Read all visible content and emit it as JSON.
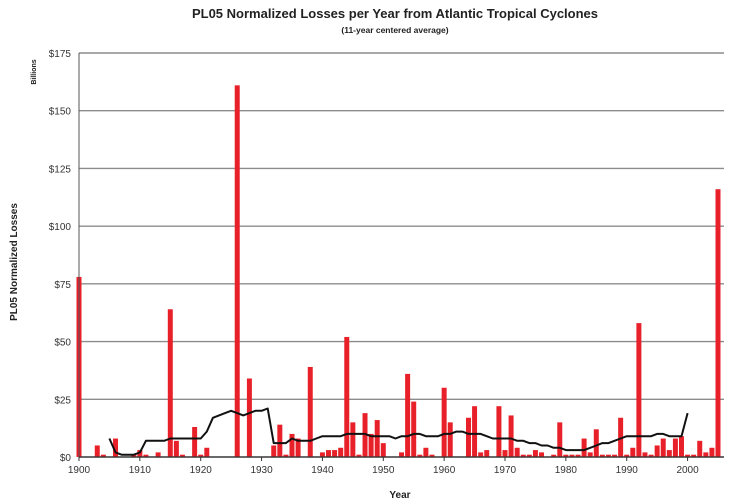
{
  "chart_data": {
    "type": "bar",
    "title": "PL05 Normalized Losses per Year from Atlantic Tropical Cyclones",
    "subtitle": "(11-year centered average)",
    "xlabel": "Year",
    "ylabel": "PL05 Normalized Losses",
    "y_unit_label": "Billions",
    "xlim": [
      1900,
      2005
    ],
    "ylim": [
      0,
      175
    ],
    "x_ticks": [
      "1900",
      "1910",
      "1920",
      "1930",
      "1940",
      "1950",
      "1960",
      "1970",
      "1980",
      "1990",
      "2000"
    ],
    "y_ticks": [
      "$0",
      "$25",
      "$50",
      "$75",
      "$100",
      "$125",
      "$150",
      "$175"
    ],
    "grid": true,
    "bar_color": "#e8202a",
    "line_color": "#111111",
    "series": [
      {
        "type": "bar",
        "x": [
          1900,
          1901,
          1902,
          1903,
          1904,
          1905,
          1906,
          1907,
          1908,
          1909,
          1910,
          1911,
          1912,
          1913,
          1914,
          1915,
          1916,
          1917,
          1918,
          1919,
          1920,
          1921,
          1922,
          1923,
          1924,
          1925,
          1926,
          1927,
          1928,
          1929,
          1930,
          1931,
          1932,
          1933,
          1934,
          1935,
          1936,
          1937,
          1938,
          1939,
          1940,
          1941,
          1942,
          1943,
          1944,
          1945,
          1946,
          1947,
          1948,
          1949,
          1950,
          1951,
          1952,
          1953,
          1954,
          1955,
          1956,
          1957,
          1958,
          1959,
          1960,
          1961,
          1962,
          1963,
          1964,
          1965,
          1966,
          1967,
          1968,
          1969,
          1970,
          1971,
          1972,
          1973,
          1974,
          1975,
          1976,
          1977,
          1978,
          1979,
          1980,
          1981,
          1982,
          1983,
          1984,
          1985,
          1986,
          1987,
          1988,
          1989,
          1990,
          1991,
          1992,
          1993,
          1994,
          1995,
          1996,
          1997,
          1998,
          1999,
          2000,
          2001,
          2002,
          2003,
          2004,
          2005
        ],
        "values": [
          78,
          0,
          0,
          5,
          1,
          0,
          8,
          0,
          0,
          1,
          3,
          1,
          0,
          2,
          0,
          64,
          7,
          1,
          0,
          13,
          1,
          4,
          0,
          0,
          0,
          0,
          161,
          0,
          34,
          0,
          0,
          0,
          5,
          14,
          1,
          10,
          8,
          0,
          39,
          0,
          2,
          3,
          3,
          4,
          52,
          15,
          1,
          19,
          10,
          16,
          6,
          0,
          0,
          2,
          36,
          24,
          1,
          4,
          1,
          0,
          30,
          15,
          0,
          0,
          17,
          22,
          2,
          3,
          0,
          22,
          3,
          18,
          4,
          1,
          1,
          3,
          2,
          0,
          1,
          15,
          1,
          1,
          1,
          8,
          2,
          12,
          1,
          1,
          1,
          17,
          1,
          4,
          58,
          2,
          1,
          5,
          8,
          3,
          8,
          9,
          1,
          1,
          7,
          2,
          4,
          116
        ]
      },
      {
        "type": "line",
        "x": [
          1905,
          1906,
          1907,
          1908,
          1909,
          1910,
          1911,
          1912,
          1913,
          1914,
          1915,
          1916,
          1917,
          1918,
          1919,
          1920,
          1921,
          1922,
          1923,
          1924,
          1925,
          1926,
          1927,
          1928,
          1929,
          1930,
          1931,
          1932,
          1933,
          1934,
          1935,
          1936,
          1937,
          1938,
          1939,
          1940,
          1941,
          1942,
          1943,
          1944,
          1945,
          1946,
          1947,
          1948,
          1949,
          1950,
          1951,
          1952,
          1953,
          1954,
          1955,
          1956,
          1957,
          1958,
          1959,
          1960,
          1961,
          1962,
          1963,
          1964,
          1965,
          1966,
          1967,
          1968,
          1969,
          1970,
          1971,
          1972,
          1973,
          1974,
          1975,
          1976,
          1977,
          1978,
          1979,
          1980,
          1981,
          1982,
          1983,
          1984,
          1985,
          1986,
          1987,
          1988,
          1989,
          1990,
          1991,
          1992,
          1993,
          1994,
          1995,
          1996,
          1997,
          1998,
          1999,
          2000
        ],
        "values": [
          8,
          2,
          1,
          1,
          1,
          2,
          7,
          7,
          7,
          7,
          8,
          8,
          8,
          8,
          8,
          8,
          11,
          17,
          18,
          19,
          20,
          19,
          18,
          19,
          20,
          20,
          21,
          6,
          6,
          6,
          8,
          7,
          7,
          7,
          8,
          9,
          9,
          9,
          9,
          10,
          10,
          10,
          10,
          9,
          9,
          9,
          9,
          8,
          9,
          9,
          10,
          10,
          9,
          9,
          9,
          10,
          10,
          11,
          11,
          10,
          10,
          10,
          9,
          8,
          8,
          8,
          8,
          7,
          7,
          6,
          6,
          5,
          5,
          4,
          4,
          3,
          3,
          3,
          3,
          4,
          5,
          6,
          6,
          7,
          8,
          9,
          9,
          9,
          9,
          9,
          10,
          10,
          9,
          9,
          9,
          19
        ]
      }
    ]
  }
}
